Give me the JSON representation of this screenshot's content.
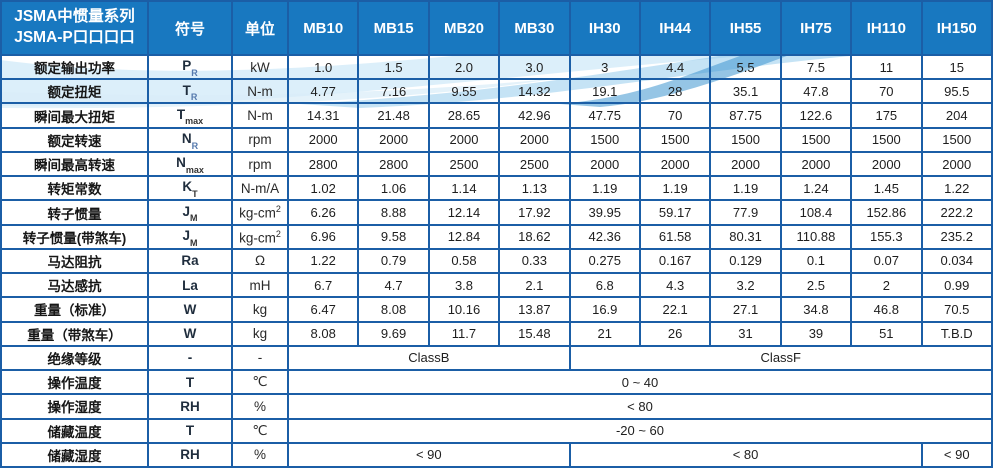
{
  "colors": {
    "header_bg": "#1878c0",
    "border": "#1b5ea6",
    "text": "#1e1e1e",
    "sub_blue": "#5579ad",
    "wave_light": "#bfe2f5",
    "wave_mid": "#7fc2e8",
    "wave_dark": "#3e95d0"
  },
  "table": {
    "title_line1": "JSMA中惯量系列",
    "title_line2": "JSMA-P口口口口",
    "col_symbol": "符号",
    "col_unit": "单位",
    "models": [
      "MB10",
      "MB15",
      "MB20",
      "MB30",
      "IH30",
      "IH44",
      "IH55",
      "IH75",
      "IH110",
      "IH150"
    ],
    "rows": [
      {
        "label": "额定输出功率",
        "symbol": "P",
        "sub": "R",
        "unit": "kW",
        "values": [
          "1.0",
          "1.5",
          "2.0",
          "3.0",
          "3",
          "4.4",
          "5.5",
          "7.5",
          "11",
          "15"
        ]
      },
      {
        "label": "额定扭矩",
        "symbol": "T",
        "sub": "R",
        "unit": "N-m",
        "values": [
          "4.77",
          "7.16",
          "9.55",
          "14.32",
          "19.1",
          "28",
          "35.1",
          "47.8",
          "70",
          "95.5"
        ]
      },
      {
        "label": "瞬间最大扭矩",
        "symbol": "T",
        "sub": "max",
        "unit": "N-m",
        "values": [
          "14.31",
          "21.48",
          "28.65",
          "42.96",
          "47.75",
          "70",
          "87.75",
          "122.6",
          "175",
          "204"
        ]
      },
      {
        "label": "额定转速",
        "symbol": "N",
        "sub": "R",
        "unit": "rpm",
        "values": [
          "2000",
          "2000",
          "2000",
          "2000",
          "1500",
          "1500",
          "1500",
          "1500",
          "1500",
          "1500"
        ]
      },
      {
        "label": "瞬间最高转速",
        "symbol": "N",
        "sub": "max",
        "unit": "rpm",
        "values": [
          "2800",
          "2800",
          "2500",
          "2500",
          "2000",
          "2000",
          "2000",
          "2000",
          "2000",
          "2000"
        ]
      },
      {
        "label": "转矩常数",
        "symbol": "K",
        "sub": "T",
        "unit": "N-m/A",
        "values": [
          "1.02",
          "1.06",
          "1.14",
          "1.13",
          "1.19",
          "1.19",
          "1.19",
          "1.24",
          "1.45",
          "1.22"
        ]
      },
      {
        "label": "转子惯量",
        "symbol": "J",
        "sub": "M",
        "unit": "kg-cm",
        "unit_sup": "2",
        "values": [
          "6.26",
          "8.88",
          "12.14",
          "17.92",
          "39.95",
          "59.17",
          "77.9",
          "108.4",
          "152.86",
          "222.2"
        ]
      },
      {
        "label": "转子惯量(带煞车)",
        "symbol": "J",
        "sub": "M",
        "unit": "kg-cm",
        "unit_sup": "2",
        "values": [
          "6.96",
          "9.58",
          "12.84",
          "18.62",
          "42.36",
          "61.58",
          "80.31",
          "110.88",
          "155.3",
          "235.2"
        ]
      },
      {
        "label": "马达阻抗",
        "symbol": "Ra",
        "unit": "Ω",
        "values": [
          "1.22",
          "0.79",
          "0.58",
          "0.33",
          "0.275",
          "0.167",
          "0.129",
          "0.1",
          "0.07",
          "0.034"
        ]
      },
      {
        "label": "马达感抗",
        "symbol": "La",
        "unit": "mH",
        "values": [
          "6.7",
          "4.7",
          "3.8",
          "2.1",
          "6.8",
          "4.3",
          "3.2",
          "2.5",
          "2",
          "0.99"
        ]
      },
      {
        "label": "重量（标准）",
        "symbol": "W",
        "unit": "kg",
        "values": [
          "6.47",
          "8.08",
          "10.16",
          "13.87",
          "16.9",
          "22.1",
          "27.1",
          "34.8",
          "46.8",
          "70.5"
        ]
      },
      {
        "label": "重量（带煞车）",
        "symbol": "W",
        "unit": "kg",
        "values": [
          "8.08",
          "9.69",
          "11.7",
          "15.48",
          "21",
          "26",
          "31",
          "39",
          "51",
          "T.B.D"
        ]
      },
      {
        "label": "绝缘等级",
        "symbol": "-",
        "unit": "-",
        "spans": [
          {
            "text": "ClassB",
            "cols": 4
          },
          {
            "text": "ClassF",
            "cols": 6
          }
        ]
      },
      {
        "label": "操作温度",
        "symbol": "T",
        "unit": "℃",
        "spans": [
          {
            "text": "0 ~ 40",
            "cols": 10
          }
        ]
      },
      {
        "label": "操作湿度",
        "symbol": "RH",
        "unit": "%",
        "spans": [
          {
            "text": "< 80",
            "cols": 10
          }
        ]
      },
      {
        "label": "储藏温度",
        "symbol": "T",
        "unit": "℃",
        "spans": [
          {
            "text": "-20 ~ 60",
            "cols": 10
          }
        ]
      },
      {
        "label": "储藏湿度",
        "symbol": "RH",
        "unit": "%",
        "spans": [
          {
            "text": "< 90",
            "cols": 4
          },
          {
            "text": "< 80",
            "cols": 5
          },
          {
            "text": "< 90",
            "cols": 1
          }
        ]
      }
    ]
  }
}
